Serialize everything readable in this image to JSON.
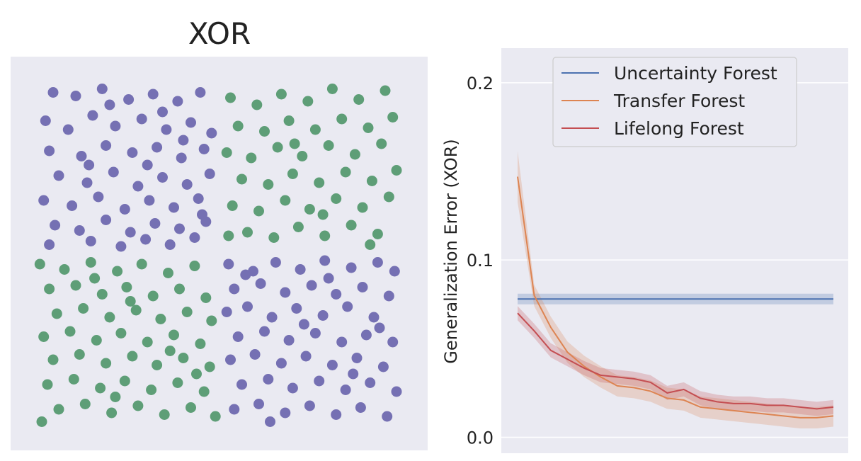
{
  "chart_data": [
    {
      "type": "scatter",
      "title": "XOR",
      "xlim": [
        -1,
        1
      ],
      "ylim": [
        -1,
        1
      ],
      "grid": false,
      "xlabel": "",
      "ylabel": "",
      "colors": {
        "class_0": "#7570b3",
        "class_1": "#5e9e77"
      },
      "classes": [
        {
          "label": "",
          "color": "#7570b3",
          "rule": "x*y > 0",
          "points": [
            [
              -0.88,
              0.91
            ],
            [
              -0.76,
              0.89
            ],
            [
              -0.62,
              0.93
            ],
            [
              -0.48,
              0.87
            ],
            [
              -0.35,
              0.9
            ],
            [
              -0.22,
              0.86
            ],
            [
              -0.1,
              0.91
            ],
            [
              -0.92,
              0.75
            ],
            [
              -0.8,
              0.7
            ],
            [
              -0.67,
              0.78
            ],
            [
              -0.55,
              0.72
            ],
            [
              -0.41,
              0.76
            ],
            [
              -0.28,
              0.7
            ],
            [
              -0.15,
              0.74
            ],
            [
              -0.04,
              0.68
            ],
            [
              -0.9,
              0.58
            ],
            [
              -0.73,
              0.55
            ],
            [
              -0.6,
              0.61
            ],
            [
              -0.46,
              0.57
            ],
            [
              -0.33,
              0.6
            ],
            [
              -0.2,
              0.54
            ],
            [
              -0.08,
              0.59
            ],
            [
              -0.85,
              0.44
            ],
            [
              -0.7,
              0.4
            ],
            [
              -0.56,
              0.46
            ],
            [
              -0.43,
              0.38
            ],
            [
              -0.3,
              0.43
            ],
            [
              -0.17,
              0.39
            ],
            [
              -0.05,
              0.45
            ],
            [
              -0.93,
              0.3
            ],
            [
              -0.78,
              0.27
            ],
            [
              -0.64,
              0.32
            ],
            [
              -0.5,
              0.25
            ],
            [
              -0.37,
              0.3
            ],
            [
              -0.24,
              0.26
            ],
            [
              -0.11,
              0.31
            ],
            [
              -0.87,
              0.16
            ],
            [
              -0.74,
              0.13
            ],
            [
              -0.6,
              0.19
            ],
            [
              -0.47,
              0.12
            ],
            [
              -0.34,
              0.17
            ],
            [
              -0.21,
              0.14
            ],
            [
              -0.07,
              0.18
            ],
            [
              -0.9,
              0.05
            ],
            [
              -0.68,
              0.07
            ],
            [
              -0.52,
              0.04
            ],
            [
              -0.39,
              0.08
            ],
            [
              -0.26,
              0.05
            ],
            [
              -0.13,
              0.09
            ],
            [
              -0.58,
              0.84
            ],
            [
              -0.3,
              0.8
            ],
            [
              -0.19,
              0.64
            ],
            [
              -0.69,
              0.5
            ],
            [
              -0.38,
              0.5
            ],
            [
              -0.09,
              0.22
            ],
            [
              0.05,
              -0.06
            ],
            [
              0.18,
              -0.1
            ],
            [
              0.3,
              -0.05
            ],
            [
              0.43,
              -0.09
            ],
            [
              0.56,
              -0.04
            ],
            [
              0.7,
              -0.08
            ],
            [
              0.84,
              -0.05
            ],
            [
              0.93,
              -0.1
            ],
            [
              0.08,
              -0.2
            ],
            [
              0.22,
              -0.17
            ],
            [
              0.35,
              -0.22
            ],
            [
              0.49,
              -0.18
            ],
            [
              0.62,
              -0.23
            ],
            [
              0.76,
              -0.19
            ],
            [
              0.9,
              -0.24
            ],
            [
              0.04,
              -0.33
            ],
            [
              0.15,
              -0.3
            ],
            [
              0.28,
              -0.36
            ],
            [
              0.41,
              -0.31
            ],
            [
              0.55,
              -0.35
            ],
            [
              0.68,
              -0.3
            ],
            [
              0.82,
              -0.36
            ],
            [
              0.1,
              -0.47
            ],
            [
              0.24,
              -0.44
            ],
            [
              0.37,
              -0.49
            ],
            [
              0.51,
              -0.45
            ],
            [
              0.65,
              -0.5
            ],
            [
              0.78,
              -0.46
            ],
            [
              0.92,
              -0.5
            ],
            [
              0.06,
              -0.6
            ],
            [
              0.19,
              -0.57
            ],
            [
              0.33,
              -0.62
            ],
            [
              0.46,
              -0.58
            ],
            [
              0.6,
              -0.63
            ],
            [
              0.73,
              -0.59
            ],
            [
              0.87,
              -0.64
            ],
            [
              0.12,
              -0.74
            ],
            [
              0.26,
              -0.71
            ],
            [
              0.39,
              -0.76
            ],
            [
              0.53,
              -0.72
            ],
            [
              0.67,
              -0.77
            ],
            [
              0.8,
              -0.73
            ],
            [
              0.94,
              -0.78
            ],
            [
              0.08,
              -0.88
            ],
            [
              0.21,
              -0.85
            ],
            [
              0.35,
              -0.9
            ],
            [
              0.48,
              -0.86
            ],
            [
              0.62,
              -0.91
            ],
            [
              0.75,
              -0.87
            ],
            [
              0.89,
              -0.92
            ],
            [
              0.14,
              -0.12
            ],
            [
              0.45,
              -0.4
            ],
            [
              0.71,
              -0.68
            ],
            [
              0.27,
              -0.95
            ],
            [
              0.58,
              -0.14
            ],
            [
              0.85,
              -0.42
            ]
          ]
        },
        {
          "label": "",
          "color": "#5e9e77",
          "rule": "x*y < 0",
          "points": [
            [
              0.06,
              0.88
            ],
            [
              0.2,
              0.84
            ],
            [
              0.33,
              0.9
            ],
            [
              0.47,
              0.86
            ],
            [
              0.6,
              0.93
            ],
            [
              0.74,
              0.87
            ],
            [
              0.88,
              0.92
            ],
            [
              0.1,
              0.72
            ],
            [
              0.24,
              0.69
            ],
            [
              0.37,
              0.75
            ],
            [
              0.51,
              0.7
            ],
            [
              0.65,
              0.76
            ],
            [
              0.79,
              0.71
            ],
            [
              0.92,
              0.77
            ],
            [
              0.04,
              0.57
            ],
            [
              0.17,
              0.54
            ],
            [
              0.31,
              0.6
            ],
            [
              0.44,
              0.55
            ],
            [
              0.58,
              0.61
            ],
            [
              0.72,
              0.56
            ],
            [
              0.86,
              0.62
            ],
            [
              0.12,
              0.42
            ],
            [
              0.26,
              0.39
            ],
            [
              0.39,
              0.45
            ],
            [
              0.53,
              0.4
            ],
            [
              0.67,
              0.46
            ],
            [
              0.81,
              0.41
            ],
            [
              0.94,
              0.47
            ],
            [
              0.07,
              0.27
            ],
            [
              0.21,
              0.24
            ],
            [
              0.35,
              0.3
            ],
            [
              0.48,
              0.25
            ],
            [
              0.62,
              0.31
            ],
            [
              0.76,
              0.26
            ],
            [
              0.9,
              0.32
            ],
            [
              0.15,
              0.12
            ],
            [
              0.29,
              0.09
            ],
            [
              0.42,
              0.15
            ],
            [
              0.56,
              0.1
            ],
            [
              0.7,
              0.16
            ],
            [
              0.84,
              0.11
            ],
            [
              0.05,
              0.1
            ],
            [
              0.4,
              0.62
            ],
            [
              0.55,
              0.22
            ],
            [
              0.8,
              0.05
            ],
            [
              -0.95,
              -0.06
            ],
            [
              -0.82,
              -0.09
            ],
            [
              -0.68,
              -0.05
            ],
            [
              -0.54,
              -0.1
            ],
            [
              -0.41,
              -0.06
            ],
            [
              -0.27,
              -0.11
            ],
            [
              -0.13,
              -0.07
            ],
            [
              -0.9,
              -0.2
            ],
            [
              -0.76,
              -0.18
            ],
            [
              -0.62,
              -0.23
            ],
            [
              -0.49,
              -0.19
            ],
            [
              -0.35,
              -0.24
            ],
            [
              -0.21,
              -0.2
            ],
            [
              -0.07,
              -0.25
            ],
            [
              -0.86,
              -0.34
            ],
            [
              -0.72,
              -0.31
            ],
            [
              -0.58,
              -0.36
            ],
            [
              -0.44,
              -0.32
            ],
            [
              -0.31,
              -0.37
            ],
            [
              -0.17,
              -0.33
            ],
            [
              -0.04,
              -0.38
            ],
            [
              -0.93,
              -0.47
            ],
            [
              -0.79,
              -0.44
            ],
            [
              -0.65,
              -0.49
            ],
            [
              -0.52,
              -0.45
            ],
            [
              -0.38,
              -0.5
            ],
            [
              -0.24,
              -0.46
            ],
            [
              -0.1,
              -0.51
            ],
            [
              -0.88,
              -0.6
            ],
            [
              -0.74,
              -0.57
            ],
            [
              -0.6,
              -0.62
            ],
            [
              -0.46,
              -0.58
            ],
            [
              -0.33,
              -0.63
            ],
            [
              -0.19,
              -0.59
            ],
            [
              -0.05,
              -0.64
            ],
            [
              -0.91,
              -0.74
            ],
            [
              -0.77,
              -0.71
            ],
            [
              -0.63,
              -0.76
            ],
            [
              -0.5,
              -0.72
            ],
            [
              -0.36,
              -0.77
            ],
            [
              -0.22,
              -0.73
            ],
            [
              -0.08,
              -0.78
            ],
            [
              -0.85,
              -0.88
            ],
            [
              -0.71,
              -0.85
            ],
            [
              -0.57,
              -0.9
            ],
            [
              -0.43,
              -0.86
            ],
            [
              -0.29,
              -0.91
            ],
            [
              -0.15,
              -0.87
            ],
            [
              -0.02,
              -0.92
            ],
            [
              -0.66,
              -0.14
            ],
            [
              -0.47,
              -0.27
            ],
            [
              -0.26,
              -0.55
            ],
            [
              -0.55,
              -0.81
            ],
            [
              -0.12,
              -0.68
            ],
            [
              -0.94,
              -0.95
            ]
          ]
        }
      ]
    },
    {
      "type": "line",
      "ylabel": "Generalization Error (XOR)",
      "xlabel": "",
      "ylim": [
        -0.009,
        0.2195
      ],
      "yticks": [
        "0.0",
        "0.1",
        "0.2"
      ],
      "ytick_values": [
        0.0,
        0.1,
        0.2
      ],
      "grid": true,
      "legend_position": "top-right",
      "x": [
        1,
        2,
        3,
        4,
        5,
        6,
        7,
        8,
        9,
        10,
        11,
        12,
        13,
        14,
        15,
        16,
        17,
        18,
        19,
        20
      ],
      "series": [
        {
          "name": "Uncertainty Forest",
          "color": "#4c72b0",
          "values": [
            0.078,
            0.078,
            0.078,
            0.078,
            0.078,
            0.078,
            0.078,
            0.078,
            0.078,
            0.078,
            0.078,
            0.078,
            0.078,
            0.078,
            0.078,
            0.078,
            0.078,
            0.078,
            0.078,
            0.078
          ],
          "band": 0.003
        },
        {
          "name": "Transfer Forest",
          "color": "#dd8452",
          "values": [
            0.147,
            0.08,
            0.062,
            0.048,
            0.04,
            0.034,
            0.029,
            0.028,
            0.026,
            0.022,
            0.021,
            0.017,
            0.016,
            0.015,
            0.014,
            0.013,
            0.012,
            0.011,
            0.011,
            0.012
          ],
          "band": 0.006
        },
        {
          "name": "Lifelong Forest",
          "color": "#c44e52",
          "values": [
            0.07,
            0.06,
            0.049,
            0.044,
            0.039,
            0.035,
            0.034,
            0.033,
            0.031,
            0.025,
            0.027,
            0.022,
            0.02,
            0.019,
            0.019,
            0.018,
            0.018,
            0.017,
            0.016,
            0.017
          ],
          "band": 0.004
        }
      ]
    }
  ]
}
